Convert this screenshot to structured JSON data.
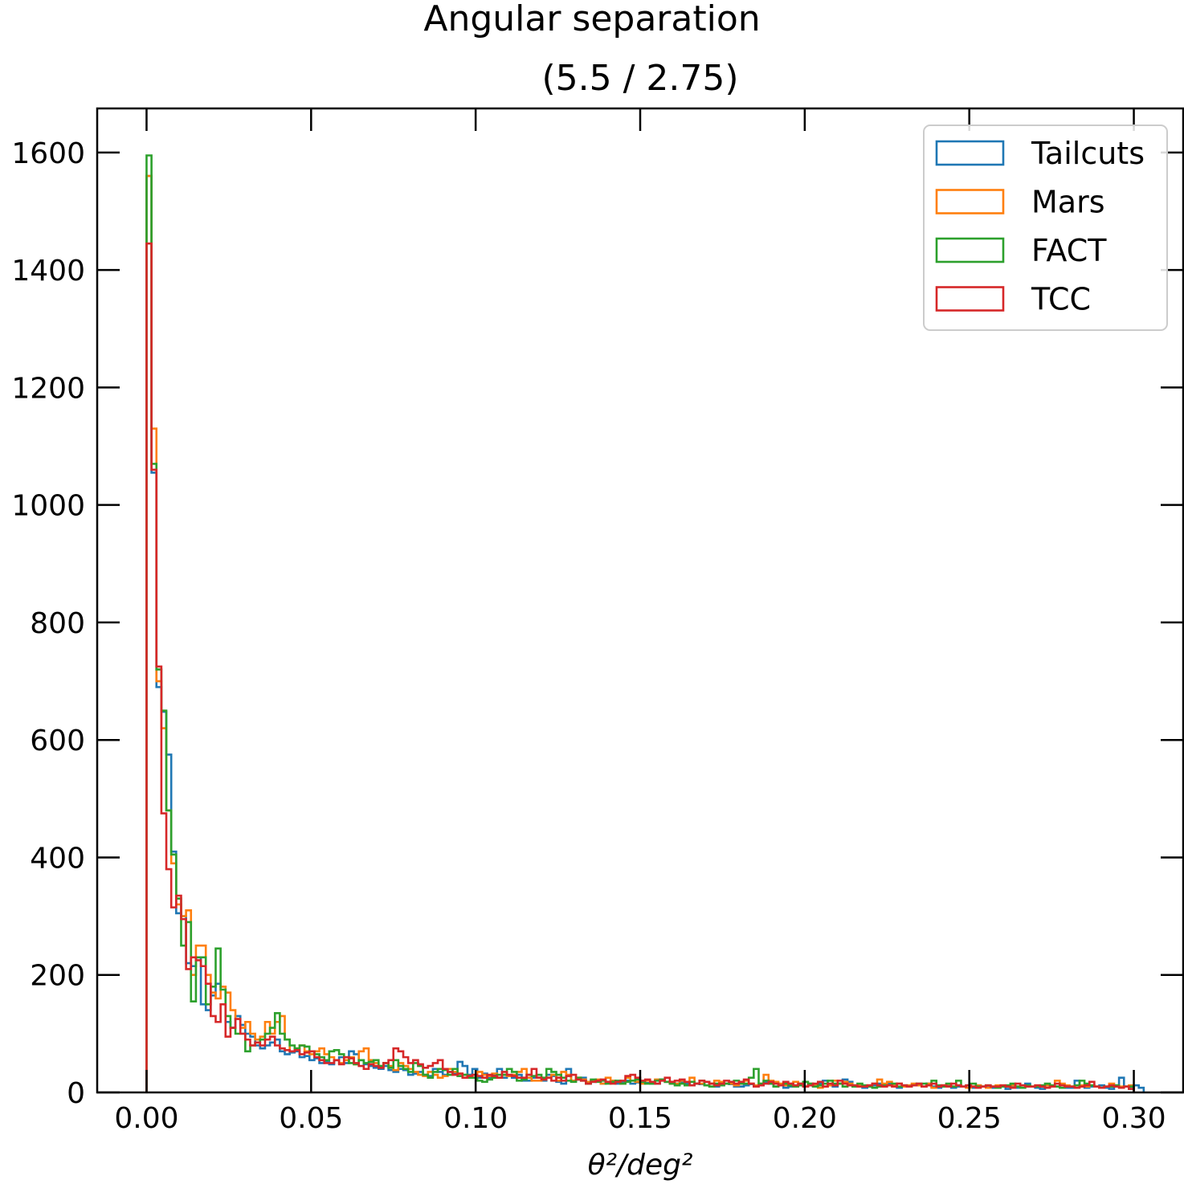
{
  "chart_data": {
    "type": "histogram",
    "title": "Angular separation",
    "subtitle": "(5.5 / 2.75)",
    "xlabel": "θ²/deg²",
    "ylabel": "",
    "xlim": [
      -0.015,
      0.315
    ],
    "ylim": [
      0,
      1675
    ],
    "xticks": [
      0.0,
      0.05,
      0.1,
      0.15,
      0.2,
      0.25,
      0.3
    ],
    "xtick_labels": [
      "0.00",
      "0.05",
      "0.10",
      "0.15",
      "0.20",
      "0.25",
      "0.30"
    ],
    "yticks": [
      0,
      200,
      400,
      600,
      800,
      1000,
      1200,
      1400,
      1600
    ],
    "ytick_labels": [
      "0",
      "200",
      "400",
      "600",
      "800",
      "1000",
      "1200",
      "1400",
      "1600"
    ],
    "bins": {
      "start": 0.0,
      "end": 0.3,
      "count": 200,
      "width": 0.0015
    },
    "grid": false,
    "legend_position": "top-right",
    "series": [
      {
        "name": "Tailcuts",
        "color": "#1f77b4",
        "values": [
          1560,
          1055,
          690,
          648,
          575,
          410,
          305,
          300,
          220,
          215,
          230,
          150,
          140,
          165,
          185,
          180,
          120,
          110,
          130,
          115,
          100,
          95,
          80,
          75,
          80,
          85,
          90,
          70,
          65,
          68,
          70,
          60,
          62,
          55,
          58,
          50,
          52,
          48,
          55,
          60,
          50,
          70,
          65,
          55,
          48,
          45,
          42,
          40,
          45,
          38,
          35,
          40,
          38,
          30,
          32,
          35,
          30,
          28,
          40,
          35,
          30,
          35,
          32,
          52,
          45,
          30,
          40,
          25,
          32,
          25,
          30,
          40,
          25,
          28,
          25,
          30,
          20,
          20,
          25,
          25,
          20,
          30,
          28,
          18,
          15,
          40,
          20,
          22,
          25,
          15,
          18,
          20,
          15,
          18,
          20,
          15,
          18,
          20,
          15,
          17,
          18,
          16,
          15,
          15,
          22,
          18,
          15,
          15,
          17,
          15,
          12,
          15,
          14,
          18,
          15,
          10,
          12,
          15,
          14,
          10,
          10,
          12,
          14,
          10,
          12,
          18,
          15,
          10,
          12,
          8,
          10,
          12,
          15,
          10,
          12,
          10,
          15,
          20,
          12,
          10,
          15,
          22,
          18,
          12,
          10,
          8,
          10,
          12,
          15,
          10,
          15,
          12,
          8,
          10,
          10,
          12,
          12,
          10,
          15,
          10,
          8,
          10,
          12,
          8,
          10,
          10,
          8,
          8,
          12,
          10,
          10,
          8,
          10,
          10,
          6,
          10,
          8,
          12,
          15,
          10,
          8,
          6,
          8,
          10,
          10,
          12,
          8,
          8,
          20,
          10,
          8,
          10,
          10,
          12,
          8,
          6,
          10,
          25,
          10,
          6,
          12,
          8
        ]
      },
      {
        "name": "Mars",
        "color": "#ff7f0e",
        "values": [
          1560,
          1130,
          700,
          620,
          480,
          390,
          320,
          300,
          310,
          200,
          250,
          250,
          200,
          170,
          160,
          180,
          170,
          140,
          125,
          110,
          120,
          100,
          90,
          95,
          120,
          100,
          120,
          130,
          90,
          70,
          75,
          80,
          70,
          65,
          70,
          75,
          65,
          60,
          55,
          50,
          55,
          60,
          48,
          70,
          75,
          55,
          50,
          45,
          50,
          45,
          38,
          50,
          45,
          40,
          35,
          30,
          28,
          35,
          30,
          25,
          28,
          40,
          35,
          32,
          30,
          28,
          25,
          35,
          30,
          28,
          32,
          25,
          30,
          28,
          30,
          35,
          40,
          25,
          20,
          20,
          22,
          25,
          30,
          20,
          35,
          30,
          20,
          25,
          22,
          18,
          20,
          22,
          15,
          25,
          20,
          18,
          15,
          25,
          20,
          18,
          15,
          20,
          18,
          22,
          20,
          18,
          15,
          15,
          20,
          18,
          25,
          15,
          15,
          12,
          15,
          20,
          18,
          15,
          15,
          12,
          15,
          20,
          15,
          12,
          15,
          30,
          20,
          18,
          15,
          12,
          15,
          18,
          15,
          10,
          15,
          12,
          8,
          10,
          12,
          20,
          15,
          18,
          15,
          12,
          12,
          10,
          12,
          15,
          22,
          15,
          18,
          12,
          15,
          10,
          12,
          15,
          12,
          10,
          15,
          8,
          10,
          12,
          14,
          10,
          12,
          10,
          8,
          10,
          12,
          10,
          8,
          10,
          12,
          10,
          10,
          12,
          10,
          8,
          10,
          10,
          12,
          10,
          12,
          10,
          20,
          15,
          12,
          10,
          8,
          12,
          10,
          12,
          10,
          8,
          10,
          15,
          12,
          10,
          10,
          12
        ]
      },
      {
        "name": "FACT",
        "color": "#2ca02c",
        "values": [
          1595,
          1070,
          720,
          650,
          480,
          405,
          330,
          250,
          290,
          155,
          230,
          230,
          150,
          180,
          245,
          175,
          130,
          110,
          100,
          100,
          70,
          80,
          85,
          90,
          100,
          110,
          135,
          100,
          90,
          80,
          75,
          80,
          78,
          70,
          65,
          60,
          55,
          70,
          72,
          65,
          60,
          50,
          48,
          55,
          50,
          52,
          55,
          45,
          50,
          42,
          55,
          45,
          40,
          35,
          50,
          45,
          30,
          25,
          35,
          40,
          38,
          30,
          40,
          28,
          30,
          25,
          25,
          20,
          18,
          22,
          25,
          30,
          30,
          40,
          35,
          20,
          22,
          30,
          28,
          30,
          25,
          40,
          35,
          30,
          25,
          20,
          18,
          25,
          20,
          15,
          22,
          18,
          20,
          15,
          18,
          20,
          15,
          18,
          20,
          22,
          18,
          15,
          15,
          20,
          22,
          18,
          15,
          12,
          15,
          12,
          18,
          15,
          20,
          12,
          10,
          15,
          12,
          15,
          18,
          20,
          15,
          15,
          25,
          40,
          15,
          20,
          15,
          10,
          12,
          15,
          12,
          10,
          12,
          18,
          15,
          10,
          12,
          15,
          20,
          15,
          15,
          10,
          12,
          10,
          15,
          12,
          10,
          8,
          10,
          12,
          12,
          15,
          10,
          12,
          10,
          12,
          15,
          15,
          12,
          20,
          12,
          10,
          15,
          10,
          20,
          10,
          12,
          15,
          10,
          10,
          12,
          10,
          8,
          10,
          12,
          15,
          10,
          8,
          12,
          10,
          10,
          12,
          15,
          12,
          10,
          8,
          10,
          10,
          12,
          20,
          15,
          12,
          10,
          8,
          10,
          10,
          12,
          8,
          10,
          10
        ]
      },
      {
        "name": "TCC",
        "color": "#d62728",
        "values": [
          1445,
          1060,
          725,
          475,
          380,
          315,
          335,
          295,
          210,
          230,
          225,
          215,
          185,
          130,
          120,
          150,
          95,
          110,
          125,
          100,
          90,
          80,
          85,
          80,
          90,
          95,
          80,
          75,
          72,
          70,
          72,
          65,
          68,
          70,
          60,
          55,
          50,
          50,
          55,
          48,
          60,
          58,
          50,
          45,
          40,
          48,
          45,
          42,
          50,
          55,
          75,
          70,
          60,
          50,
          55,
          48,
          42,
          45,
          50,
          55,
          40,
          35,
          30,
          32,
          25,
          28,
          30,
          28,
          25,
          30,
          28,
          25,
          35,
          30,
          28,
          25,
          25,
          30,
          40,
          25,
          22,
          25,
          20,
          25,
          20,
          28,
          30,
          22,
          20,
          15,
          18,
          20,
          22,
          18,
          15,
          18,
          20,
          28,
          30,
          25,
          20,
          22,
          18,
          15,
          20,
          25,
          18,
          20,
          22,
          18,
          12,
          15,
          20,
          18,
          15,
          12,
          15,
          20,
          18,
          15,
          18,
          22,
          15,
          10,
          12,
          15,
          18,
          15,
          12,
          18,
          15,
          12,
          15,
          10,
          12,
          15,
          18,
          10,
          15,
          12,
          20,
          15,
          12,
          12,
          10,
          10,
          12,
          15,
          12,
          10,
          12,
          10,
          15,
          12,
          10,
          12,
          15,
          10,
          12,
          15,
          10,
          12,
          10,
          15,
          12,
          10,
          12,
          10,
          8,
          10,
          12,
          10,
          10,
          12,
          10,
          8,
          15,
          12,
          10,
          10,
          12,
          10,
          8,
          10,
          15,
          12,
          10,
          10,
          8,
          10,
          12,
          18,
          10,
          8,
          10,
          12,
          10,
          8,
          10,
          6
        ]
      }
    ]
  }
}
